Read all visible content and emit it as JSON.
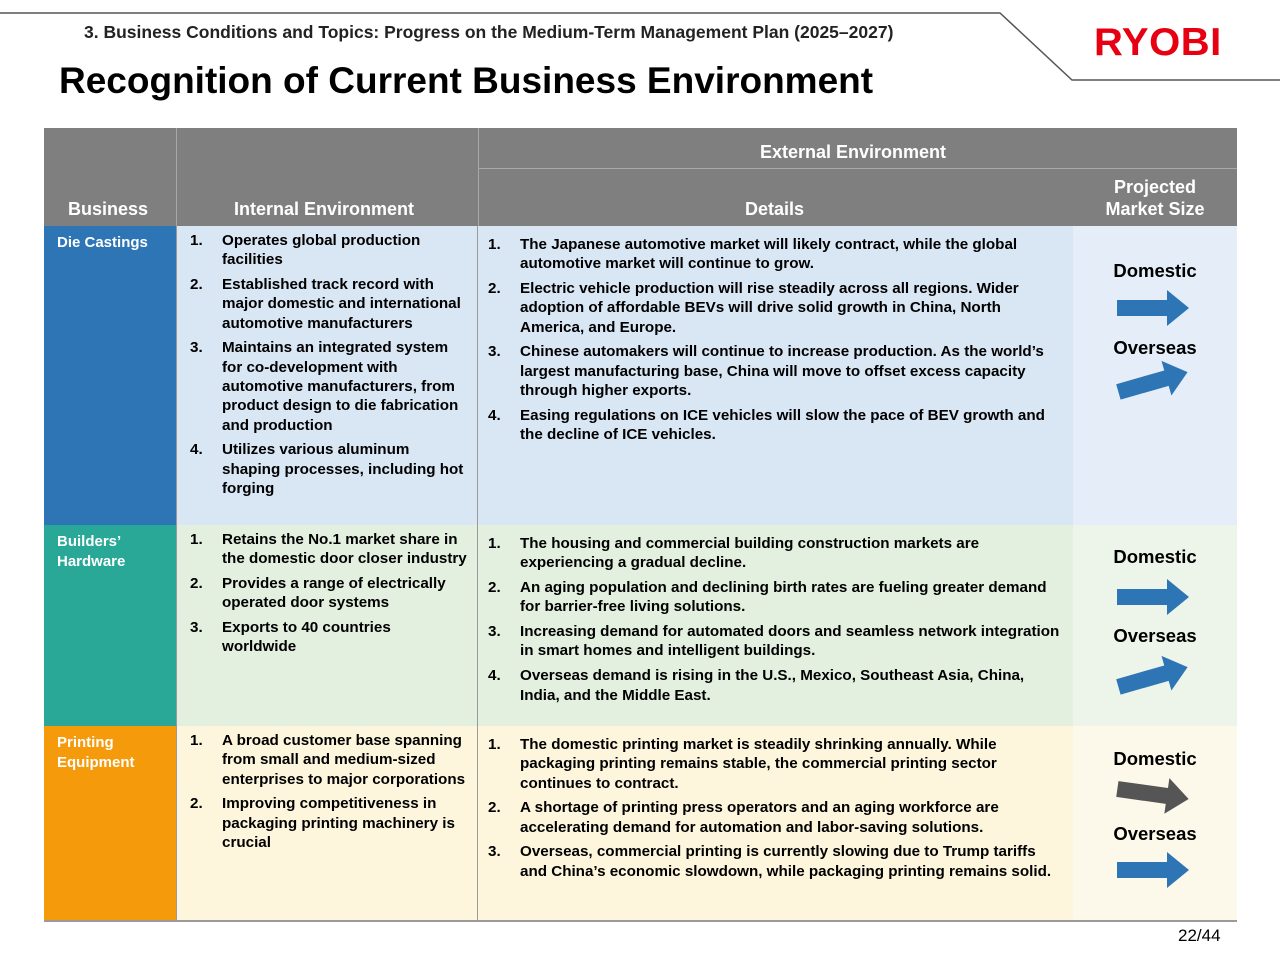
{
  "header": {
    "section_title": "3. Business Conditions and Topics: Progress on the Medium-Term Management Plan (2025–2027)",
    "logo_text": "RYOBI",
    "page_title": "Recognition of Current Business Environment"
  },
  "table": {
    "headers": {
      "business": "Business",
      "internal": "Internal Environment",
      "external": "External Environment",
      "details": "Details",
      "market_size_line1": "Projected",
      "market_size_line2": "Market Size"
    },
    "rows": [
      {
        "business_line1": "Die Castings",
        "business_line2": "",
        "color": "#2e75b6",
        "bg": "#d9e6f4",
        "market_bg": "#e5eef8",
        "internal": [
          "Operates global production facilities",
          "Established track record with major domestic and international automotive manufacturers",
          "Maintains an integrated system for co-development with automotive  manufacturers, from product design to die fabrication and production",
          "Utilizes various aluminum shaping processes, including hot forging"
        ],
        "details": [
          "The Japanese automotive market will likely contract, while the global automotive market will continue to grow.",
          "Electric vehicle production will rise steadily across all regions. Wider adoption of affordable BEVs will drive solid growth in China, North America, and Europe.",
          "Chinese automakers will continue to increase production. As the world’s largest manufacturing base, China will move to offset excess capacity through higher exports.",
          "Easing regulations on ICE vehicles will slow the pace of BEV growth and the decline of ICE vehicles."
        ],
        "domestic_label": "Domestic",
        "overseas_label": "Overseas",
        "domestic_trend": "flat",
        "domestic_arrow_color": "#2e75b6",
        "overseas_trend": "up",
        "overseas_arrow_color": "#2e75b6"
      },
      {
        "business_line1": "Builders’",
        "business_line2": "Hardware",
        "color": "#2aa897",
        "bg": "#e3efdf",
        "market_bg": "#edf4ea",
        "internal": [
          "Retains the No.1 market share in the domestic door closer industry",
          "Provides a range of electrically operated door systems",
          "Exports to 40 countries worldwide"
        ],
        "details": [
          "The housing and commercial building construction markets are experiencing a gradual decline.",
          "An aging population and declining birth rates are fueling greater demand for barrier-free living solutions.",
          "Increasing demand for automated doors and seamless network integration in smart homes and intelligent buildings.",
          "Overseas demand is rising in the U.S., Mexico, Southeast Asia, China, India, and the Middle East."
        ],
        "domestic_label": "Domestic",
        "overseas_label": "Overseas",
        "domestic_trend": "flat",
        "domestic_arrow_color": "#2e75b6",
        "overseas_trend": "up",
        "overseas_arrow_color": "#2e75b6"
      },
      {
        "business_line1": "Printing",
        "business_line2": "Equipment",
        "color": "#f59a0b",
        "bg": "#fdf6dc",
        "market_bg": "#fdf9ea",
        "internal": [
          "A broad customer base spanning from small and medium-sized enterprises to major corporations",
          "Improving competitiveness in packaging printing machinery is crucial"
        ],
        "details": [
          "The domestic printing market is steadily shrinking annually. While packaging printing remains stable, the commercial printing sector continues to contract.",
          "A shortage of printing press operators and an aging workforce are accelerating demand for automation and labor-saving solutions.",
          "Overseas, commercial printing is currently slowing due to Trump tariffs and China’s economic slowdown, while packaging printing remains solid."
        ],
        "domestic_label": "Domestic",
        "overseas_label": "Overseas",
        "domestic_trend": "down",
        "domestic_arrow_color": "#555555",
        "overseas_trend": "flat",
        "overseas_arrow_color": "#2e75b6"
      }
    ]
  },
  "footer": {
    "page_number": "22/44"
  }
}
